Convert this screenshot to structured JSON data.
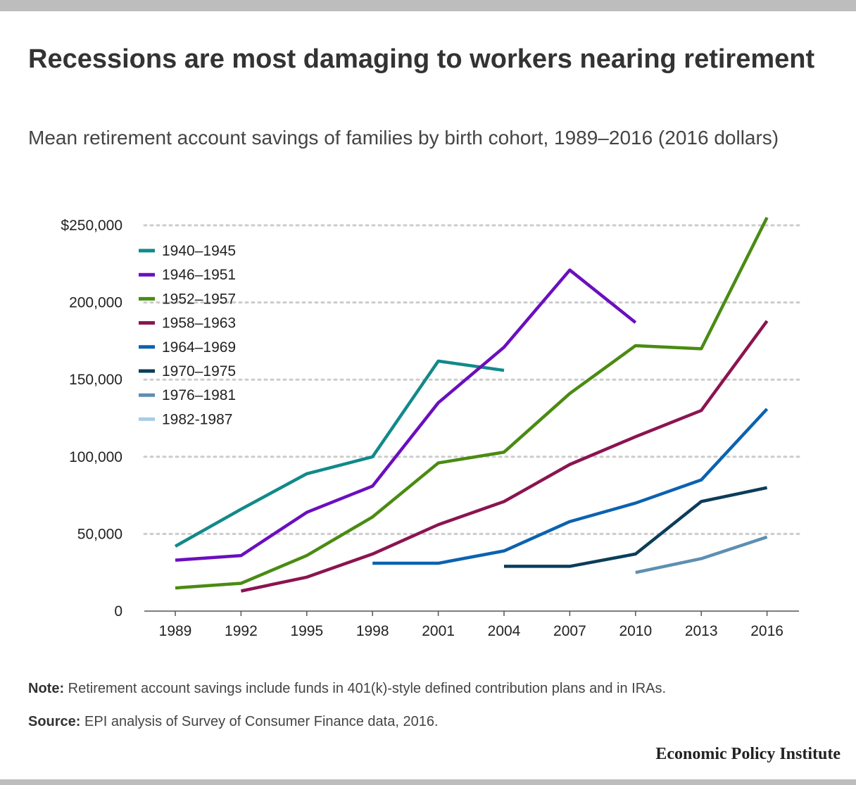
{
  "header": {
    "title": "Recessions are most damaging to workers nearing retirement",
    "subtitle": "Mean retirement account savings of families by birth cohort, 1989–2016 (2016 dollars)"
  },
  "footer": {
    "note_label": "Note:",
    "note_text": "Retirement account savings include funds in 401(k)-style defined contribution plans and in IRAs.",
    "source_label": "Source:",
    "source_text": "EPI analysis of Survey of Consumer Finance data, 2016.",
    "brand": "Economic Policy Institute"
  },
  "chart_data": {
    "type": "line",
    "x": [
      1989,
      1992,
      1995,
      1998,
      2001,
      2004,
      2007,
      2010,
      2013,
      2016
    ],
    "y_ticks": [
      0,
      50000,
      100000,
      150000,
      200000,
      250000
    ],
    "y_tick_labels": [
      "0",
      "50,000",
      "100,000",
      "150,000",
      "200,000",
      "$250,000"
    ],
    "ylim": [
      0,
      250000
    ],
    "grid": "horizontal-dotted",
    "legend_position": "top-left",
    "series": [
      {
        "name": "1940–1945",
        "color": "#12898a",
        "values": [
          42000,
          66000,
          89000,
          100000,
          162000,
          156000,
          null,
          null,
          null,
          null
        ]
      },
      {
        "name": "1946–1951",
        "color": "#6a0fbf",
        "values": [
          33000,
          36000,
          64000,
          81000,
          135000,
          171000,
          221000,
          187000,
          null,
          null
        ]
      },
      {
        "name": "1952–1957",
        "color": "#4a8b12",
        "values": [
          15000,
          18000,
          36000,
          61000,
          96000,
          103000,
          141000,
          172000,
          170000,
          255000
        ]
      },
      {
        "name": "1958–1963",
        "color": "#8b1450",
        "values": [
          null,
          13000,
          22000,
          37000,
          56000,
          71000,
          95000,
          113000,
          130000,
          188000
        ]
      },
      {
        "name": "1964–1969",
        "color": "#0b62b0",
        "values": [
          null,
          null,
          null,
          31000,
          31000,
          39000,
          58000,
          70000,
          85000,
          131000
        ]
      },
      {
        "name": "1970–1975",
        "color": "#0b3d5a",
        "values": [
          null,
          null,
          null,
          null,
          null,
          29000,
          29000,
          37000,
          71000,
          80000
        ]
      },
      {
        "name": "1976–1981",
        "color": "#5e8fb2",
        "values": [
          null,
          null,
          null,
          null,
          null,
          null,
          null,
          25000,
          34000,
          48000
        ]
      },
      {
        "name": "1982-1987",
        "color": "#a8cde6",
        "values": [
          null,
          null,
          null,
          null,
          null,
          null,
          null,
          null,
          null,
          null
        ]
      }
    ]
  }
}
